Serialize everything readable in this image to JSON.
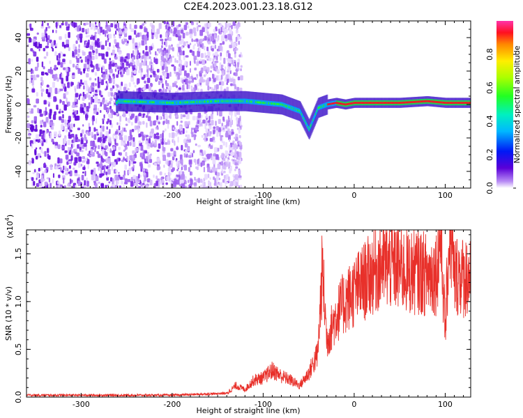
{
  "figure": {
    "title": "C2E4.2023.001.23.18.G12"
  },
  "chart_data": [
    {
      "type": "heatmap",
      "xlabel": "Height of straight line (km)",
      "ylabel": "Frequency (Hz)",
      "xlim": [
        -360,
        128
      ],
      "ylim": [
        -50,
        50
      ],
      "xticks": [
        -300,
        -200,
        -100,
        0,
        100
      ],
      "yticks": [
        -40,
        -20,
        0,
        20,
        40
      ],
      "colorbar": {
        "label": "Normalized spectral amplitude",
        "range": [
          0.0,
          1.0
        ],
        "ticks": [
          0.0,
          0.2,
          0.4,
          0.6,
          0.8
        ],
        "colormap": "rainbow"
      },
      "trace": {
        "x": [
          -260,
          -200,
          -150,
          -120,
          -100,
          -80,
          -60,
          -50,
          -40,
          -30,
          -20,
          -10,
          0,
          50,
          80,
          100,
          128
        ],
        "y": [
          2,
          1,
          2,
          2,
          1,
          0,
          -4,
          -15,
          -2,
          0,
          1,
          0,
          1,
          1,
          2,
          1,
          1
        ]
      },
      "noise_region": [
        -360,
        -125
      ],
      "colors": {
        "background": "#ffffff",
        "noise": "#7b2ae6",
        "peak": "#ff0000"
      }
    },
    {
      "type": "line",
      "xlabel": "Height of straight line (km)",
      "ylabel": "SNR (10 * v/v)",
      "y_multiplier": "(x10",
      "y_exponent": "4",
      "y_multiplier_close": ")",
      "xlim": [
        -360,
        128
      ],
      "ylim": [
        0,
        1.75
      ],
      "xticks": [
        -300,
        -200,
        -100,
        0,
        100
      ],
      "yticks": [
        0.0,
        0.5,
        1.0,
        1.5
      ],
      "ytick_labels": [
        "0.0",
        "0.5",
        "1.0",
        "1.5"
      ],
      "series": [
        {
          "color": "#e8302a",
          "x": [
            -360,
            -300,
            -200,
            -140,
            -130,
            -120,
            -110,
            -100,
            -90,
            -80,
            -70,
            -60,
            -50,
            -40,
            -35,
            -30,
            -20,
            -10,
            0,
            10,
            20,
            30,
            40,
            50,
            60,
            70,
            80,
            90,
            95,
            100,
            105,
            110,
            115,
            120,
            128
          ],
          "y": [
            0.02,
            0.02,
            0.02,
            0.04,
            0.12,
            0.08,
            0.18,
            0.2,
            0.28,
            0.22,
            0.18,
            0.12,
            0.25,
            0.45,
            1.35,
            0.6,
            0.85,
            1.0,
            1.1,
            1.2,
            1.3,
            1.4,
            1.38,
            1.35,
            1.3,
            1.32,
            1.28,
            1.3,
            1.7,
            0.7,
            1.8,
            1.25,
            1.3,
            1.25,
            1.3
          ]
        }
      ]
    }
  ]
}
